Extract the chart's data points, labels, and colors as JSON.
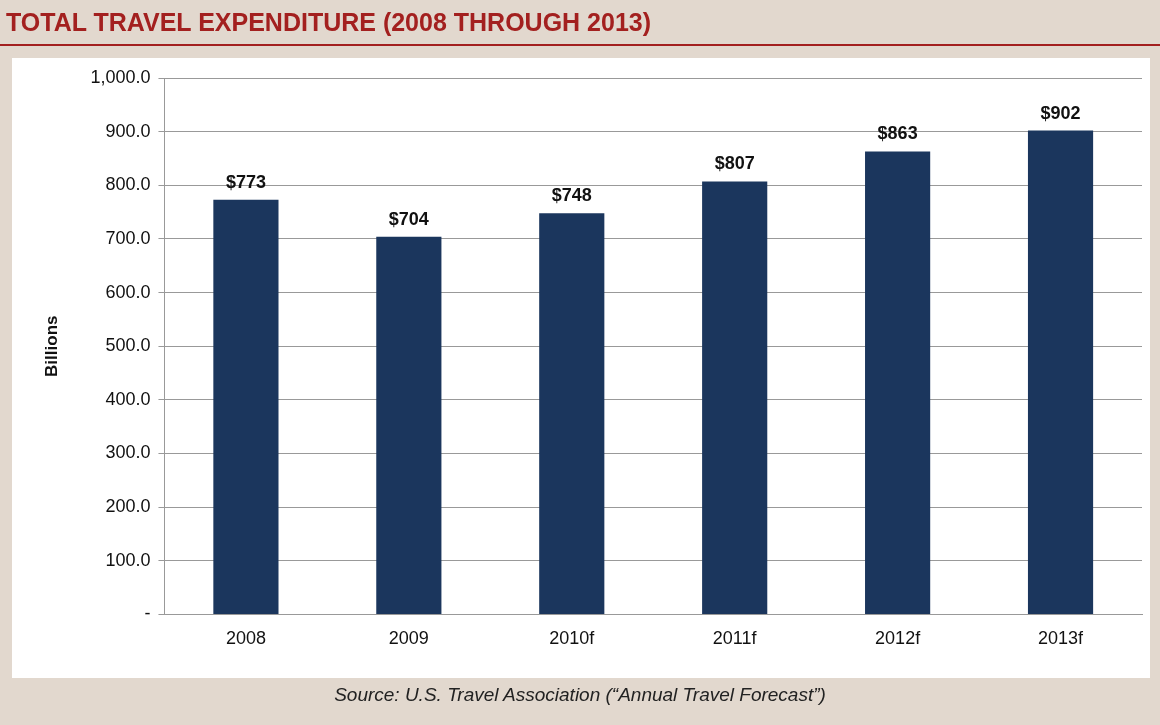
{
  "chart_data": {
    "type": "bar",
    "title": "TOTAL TRAVEL EXPENDITURE (2008 THROUGH 2013)",
    "ylabel": "Billions",
    "categories": [
      "2008",
      "2009",
      "2010f",
      "2011f",
      "2012f",
      "2013f"
    ],
    "values": [
      773,
      704,
      748,
      807,
      863,
      902
    ],
    "value_labels": [
      "$773",
      "$704",
      "$748",
      "$807",
      "$863",
      "$902"
    ],
    "color": "#1b365d",
    "ylim": [
      0,
      1000
    ],
    "yticks": [
      {
        "value": 0,
        "label": "-"
      },
      {
        "value": 100,
        "label": "100.0"
      },
      {
        "value": 200,
        "label": "200.0"
      },
      {
        "value": 300,
        "label": "300.0"
      },
      {
        "value": 400,
        "label": "400.0"
      },
      {
        "value": 500,
        "label": "500.0"
      },
      {
        "value": 600,
        "label": "600.0"
      },
      {
        "value": 700,
        "label": "700.0"
      },
      {
        "value": 800,
        "label": "800.0"
      },
      {
        "value": 900,
        "label": "900.0"
      },
      {
        "value": 1000,
        "label": "1,000.0"
      }
    ],
    "grid": "y",
    "annotations": [
      "Source: U.S. Travel Association (“Annual Travel Forecast”)"
    ]
  }
}
